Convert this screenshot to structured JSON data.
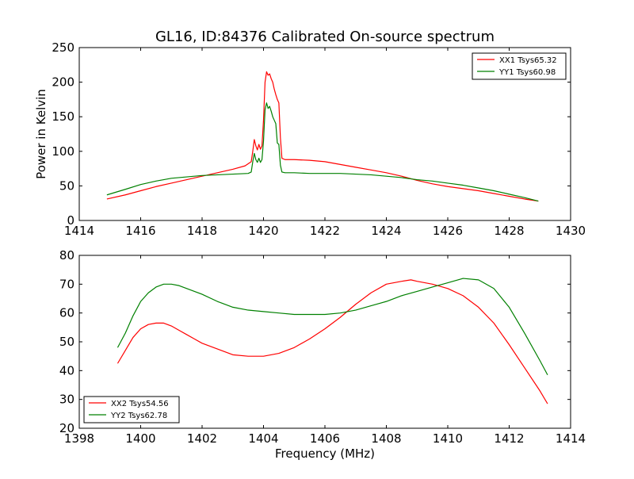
{
  "figure": {
    "title": "GL16, ID:84376 Calibrated On-source spectrum",
    "xlabel": "Frequency (MHz)",
    "ylabel": "Power in Kelvin",
    "background": "#ffffff"
  },
  "chart_data": [
    {
      "type": "line",
      "title": "GL16, ID:84376 Calibrated On-source spectrum",
      "xlabel": "",
      "ylabel": "Power in Kelvin",
      "xlim": [
        1414,
        1430
      ],
      "ylim": [
        0,
        250
      ],
      "xticks": [
        1414,
        1416,
        1418,
        1420,
        1422,
        1424,
        1426,
        1428,
        1430
      ],
      "yticks": [
        0,
        50,
        100,
        150,
        200,
        250
      ],
      "grid": false,
      "legend": "top-right",
      "series": [
        {
          "name": "XX1 Tsys65.32",
          "color": "#ff0000",
          "x": [
            1414.9,
            1415.5,
            1416.0,
            1416.5,
            1417.0,
            1417.5,
            1418.0,
            1418.5,
            1419.0,
            1419.4,
            1419.6,
            1419.65,
            1419.7,
            1419.75,
            1419.8,
            1419.85,
            1419.9,
            1419.95,
            1420.0,
            1420.05,
            1420.1,
            1420.15,
            1420.2,
            1420.25,
            1420.3,
            1420.35,
            1420.4,
            1420.45,
            1420.5,
            1420.55,
            1420.6,
            1420.7,
            1421.0,
            1421.5,
            1422.0,
            1422.5,
            1423.0,
            1423.5,
            1424.0,
            1424.5,
            1425.0,
            1425.5,
            1426.0,
            1426.5,
            1427.0,
            1427.5,
            1428.0,
            1428.5,
            1428.95
          ],
          "y": [
            31,
            37,
            43,
            49,
            54,
            59,
            64,
            69,
            74,
            79,
            85,
            100,
            117,
            108,
            102,
            110,
            103,
            108,
            145,
            200,
            215,
            210,
            212,
            205,
            200,
            190,
            182,
            175,
            170,
            120,
            90,
            88,
            88,
            87,
            85,
            81,
            77,
            73,
            69,
            64,
            58,
            53,
            49,
            46,
            43,
            39,
            35,
            31,
            28
          ]
        },
        {
          "name": "YY1 Tsys60.98",
          "color": "#008000",
          "x": [
            1414.9,
            1415.5,
            1416.0,
            1416.5,
            1417.0,
            1417.5,
            1418.0,
            1418.5,
            1419.0,
            1419.5,
            1419.6,
            1419.65,
            1419.7,
            1419.75,
            1419.8,
            1419.85,
            1419.9,
            1419.95,
            1420.0,
            1420.05,
            1420.1,
            1420.15,
            1420.2,
            1420.25,
            1420.3,
            1420.35,
            1420.4,
            1420.45,
            1420.5,
            1420.55,
            1420.6,
            1420.7,
            1421.0,
            1421.5,
            1422.0,
            1422.5,
            1423.0,
            1423.5,
            1424.0,
            1424.5,
            1425.0,
            1425.5,
            1426.0,
            1426.5,
            1427.0,
            1427.5,
            1428.0,
            1428.5,
            1428.95
          ],
          "y": [
            37,
            45,
            52,
            57,
            61,
            63,
            65,
            66,
            67,
            68,
            70,
            85,
            97,
            88,
            84,
            90,
            84,
            88,
            115,
            160,
            170,
            162,
            165,
            158,
            150,
            145,
            140,
            112,
            110,
            80,
            70,
            69,
            69,
            68,
            68,
            68,
            67,
            66,
            64,
            62,
            59,
            57,
            54,
            51,
            47,
            43,
            38,
            33,
            28
          ]
        }
      ]
    },
    {
      "type": "line",
      "title": "",
      "xlabel": "Frequency (MHz)",
      "ylabel": "",
      "xlim": [
        1398,
        1414
      ],
      "ylim": [
        20,
        80
      ],
      "xticks": [
        1398,
        1400,
        1402,
        1404,
        1406,
        1408,
        1410,
        1412,
        1414
      ],
      "yticks": [
        20,
        30,
        40,
        50,
        60,
        70,
        80
      ],
      "grid": false,
      "legend": "bottom-left",
      "series": [
        {
          "name": "XX2 Tsys54.56",
          "color": "#ff0000",
          "x": [
            1399.25,
            1399.5,
            1399.75,
            1400.0,
            1400.25,
            1400.5,
            1400.75,
            1401.0,
            1401.25,
            1401.5,
            1401.75,
            1402.0,
            1402.5,
            1403.0,
            1403.5,
            1404.0,
            1404.5,
            1405.0,
            1405.5,
            1406.0,
            1406.5,
            1407.0,
            1407.5,
            1408.0,
            1408.5,
            1408.8,
            1409.0,
            1409.5,
            1410.0,
            1410.5,
            1411.0,
            1411.5,
            1412.0,
            1412.5,
            1413.0,
            1413.25
          ],
          "y": [
            42.5,
            47,
            51.5,
            54.5,
            56,
            56.5,
            56.5,
            55.5,
            54,
            52.5,
            51,
            49.5,
            47.5,
            45.5,
            45,
            45,
            46,
            48,
            51,
            54.5,
            58.5,
            63,
            67,
            70,
            71,
            71.5,
            71,
            70,
            68.5,
            66,
            62,
            56.5,
            49,
            41,
            33,
            28.5
          ]
        },
        {
          "name": "YY2 Tsys62.78",
          "color": "#008000",
          "x": [
            1399.25,
            1399.5,
            1399.75,
            1400.0,
            1400.25,
            1400.5,
            1400.75,
            1401.0,
            1401.25,
            1401.5,
            1401.75,
            1402.0,
            1402.5,
            1403.0,
            1403.5,
            1404.0,
            1404.5,
            1405.0,
            1405.5,
            1406.0,
            1406.5,
            1407.0,
            1407.5,
            1408.0,
            1408.5,
            1409.0,
            1409.5,
            1410.0,
            1410.5,
            1411.0,
            1411.5,
            1412.0,
            1412.5,
            1413.0,
            1413.25
          ],
          "y": [
            48,
            53,
            59,
            64,
            67,
            69,
            70,
            70,
            69.5,
            68.5,
            67.5,
            66.5,
            64,
            62,
            61,
            60.5,
            60,
            59.5,
            59.5,
            59.5,
            60,
            61,
            62.5,
            64,
            66,
            67.5,
            69,
            70.5,
            72,
            71.5,
            68.5,
            62,
            53,
            43.5,
            38.5
          ]
        }
      ]
    }
  ]
}
